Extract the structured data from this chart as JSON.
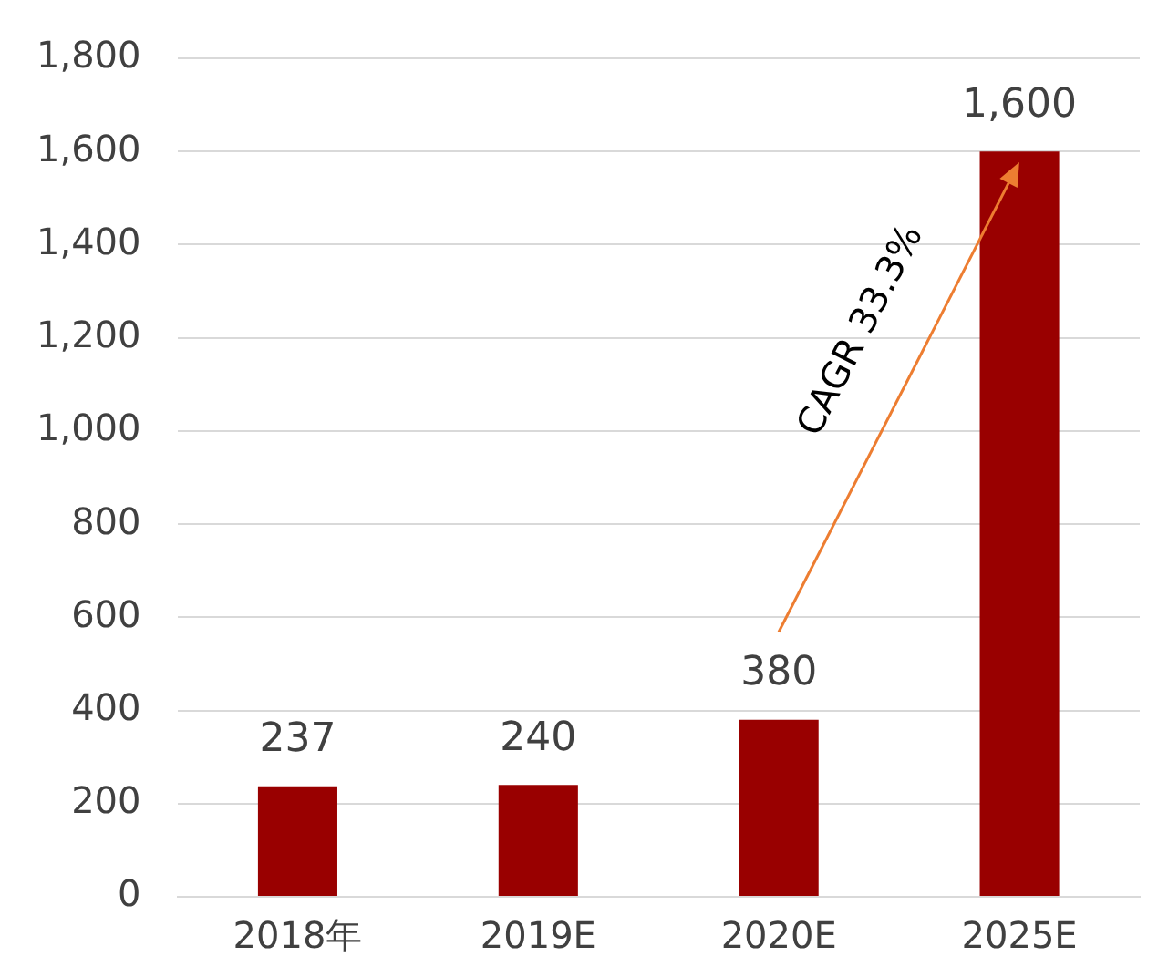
{
  "chart_data": {
    "type": "bar",
    "categories": [
      "2018年",
      "2019E",
      "2020E",
      "2025E"
    ],
    "values": [
      237,
      240,
      380,
      1600
    ],
    "color": "#990000",
    "value_labels": [
      "237",
      "240",
      "380",
      "1,600"
    ],
    "ylim": [
      0,
      1800
    ],
    "yticks": [
      0,
      200,
      400,
      600,
      800,
      {
        "value": 1000,
        "label": "1,000"
      },
      {
        "value": 1200,
        "label": "1,200"
      },
      {
        "value": 1400,
        "label": "1,400"
      },
      {
        "value": 1600,
        "label": "1,600"
      },
      {
        "value": 1800,
        "label": "1,800"
      }
    ],
    "grid": "y",
    "annotations": [
      "CAGR 33.3%"
    ]
  }
}
